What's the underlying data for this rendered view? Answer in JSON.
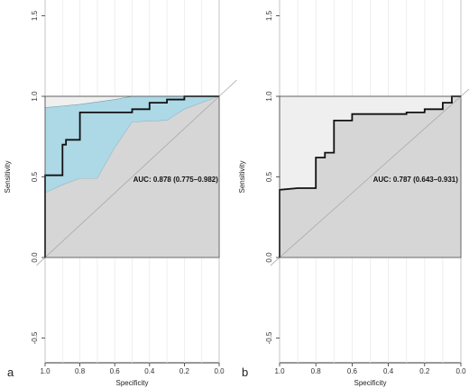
{
  "chart_data": [
    {
      "type": "line",
      "panel_label": "a",
      "xlabel": "Specificity",
      "ylabel": "Sensitivity",
      "xlim": [
        1.0,
        0.0
      ],
      "ylim": [
        -0.6,
        1.6
      ],
      "x_ticks": [
        "1.0",
        "0.8",
        "0.6",
        "0.4",
        "0.2",
        "0.0"
      ],
      "y_ticks": [
        "-0.5",
        "0.0",
        "0.5",
        "1.0",
        "1.5"
      ],
      "auc_text": "AUC: 0.878 (0.775–0.982)",
      "ci_color": "#add8e6",
      "roc": {
        "x": [
          1.0,
          1.0,
          0.9,
          0.9,
          0.88,
          0.88,
          0.8,
          0.8,
          0.5,
          0.5,
          0.4,
          0.4,
          0.3,
          0.3,
          0.2,
          0.2,
          0.0
        ],
        "y": [
          0.0,
          0.51,
          0.51,
          0.7,
          0.7,
          0.73,
          0.73,
          0.9,
          0.9,
          0.92,
          0.92,
          0.96,
          0.96,
          0.98,
          0.98,
          1.0,
          1.0
        ]
      },
      "ci_upper": {
        "x": [
          1.0,
          0.9,
          0.8,
          0.6,
          0.5,
          0.3,
          0.0
        ],
        "y": [
          0.93,
          0.94,
          0.95,
          0.98,
          1.0,
          1.0,
          1.0
        ]
      },
      "ci_lower": {
        "x": [
          1.0,
          0.9,
          0.8,
          0.7,
          0.6,
          0.5,
          0.3,
          0.2,
          0.0
        ],
        "y": [
          0.4,
          0.45,
          0.49,
          0.49,
          0.68,
          0.84,
          0.85,
          0.92,
          1.0
        ]
      }
    },
    {
      "type": "line",
      "panel_label": "b",
      "xlabel": "Specificity",
      "ylabel": "Sensitivity",
      "xlim": [
        1.0,
        0.0
      ],
      "ylim": [
        -0.6,
        1.6
      ],
      "x_ticks": [
        "1.0",
        "0.8",
        "0.6",
        "0.4",
        "0.2",
        "0.0"
      ],
      "y_ticks": [
        "-0.5",
        "0.0",
        "0.5",
        "1.0",
        "1.5"
      ],
      "auc_text": "AUC: 0.787 (0.643–0.931)",
      "roc": {
        "x": [
          1.0,
          1.0,
          0.9,
          0.8,
          0.8,
          0.75,
          0.75,
          0.7,
          0.7,
          0.6,
          0.6,
          0.3,
          0.3,
          0.2,
          0.2,
          0.1,
          0.1,
          0.05,
          0.05,
          0.0
        ],
        "y": [
          0.0,
          0.42,
          0.43,
          0.43,
          0.62,
          0.62,
          0.65,
          0.65,
          0.85,
          0.85,
          0.89,
          0.89,
          0.9,
          0.9,
          0.92,
          0.92,
          0.96,
          0.96,
          1.0,
          1.0
        ]
      }
    }
  ]
}
